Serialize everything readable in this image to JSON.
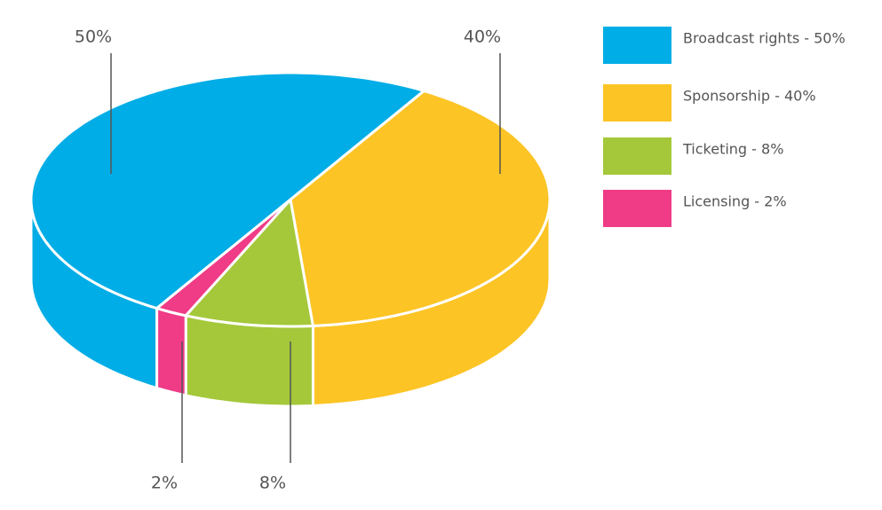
{
  "chart_data": {
    "type": "pie",
    "categories": [
      "Broadcast rights - 50%",
      "Sponsorship - 40%",
      "Ticketing - 8%",
      "Licensing - 2%"
    ],
    "values": [
      50,
      40,
      8,
      2
    ],
    "value_labels": [
      "50%",
      "40%",
      "8%",
      "2%"
    ],
    "colors": [
      "#00ade6",
      "#fcc425",
      "#a4c83a",
      "#f03b87"
    ]
  }
}
